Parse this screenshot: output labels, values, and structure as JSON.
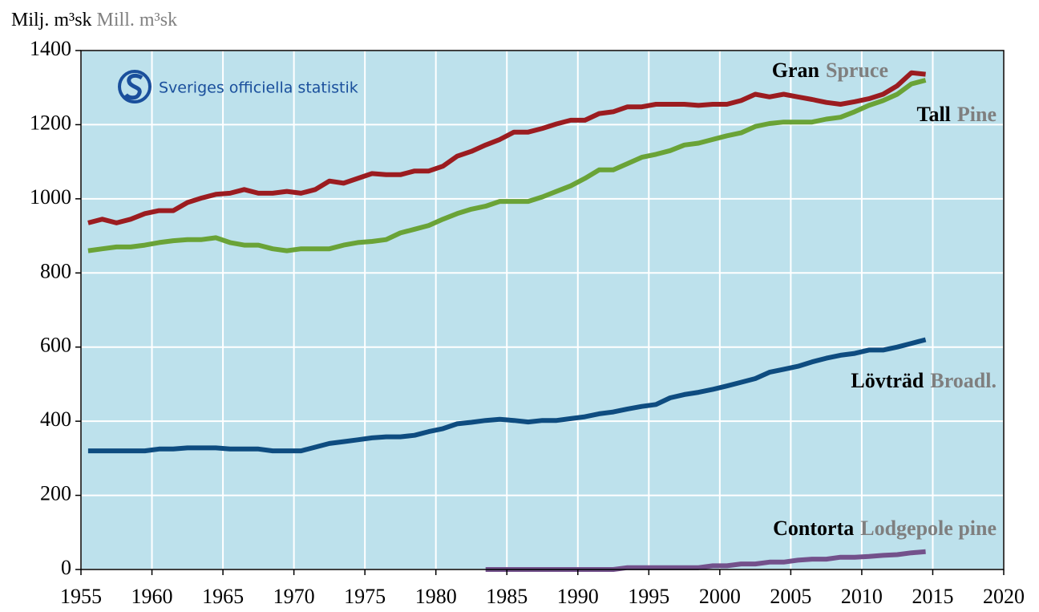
{
  "chart_data": {
    "type": "line",
    "y_label": "Milj. m³sk",
    "y_label_en": "Mill. m³sk",
    "logo": "Sveriges officiella statistik",
    "x": [
      1955.5,
      1956.5,
      1957.5,
      1958.5,
      1959.5,
      1960.5,
      1961.5,
      1962.5,
      1963.5,
      1964.5,
      1965.5,
      1966.5,
      1967.5,
      1968.5,
      1969.5,
      1970.5,
      1971.5,
      1972.5,
      1973.5,
      1974.5,
      1975.5,
      1976.5,
      1977.5,
      1978.5,
      1979.5,
      1980.5,
      1981.5,
      1982.5,
      1983.5,
      1984.5,
      1985.5,
      1986.5,
      1987.5,
      1988.5,
      1989.5,
      1990.5,
      1991.5,
      1992.5,
      1993.5,
      1994.5,
      1995.5,
      1996.5,
      1997.5,
      1998.5,
      1999.5,
      2000.5,
      2001.5,
      2002.5,
      2003.5,
      2004.5,
      2005.5,
      2006.5,
      2007.5,
      2008.5,
      2009.5,
      2010.5,
      2011.5,
      2012.5,
      2013.5,
      2014.5
    ],
    "series": [
      {
        "name": "Gran",
        "name_en": "Spruce",
        "color": "#9b1c20",
        "values": [
          935,
          945,
          935,
          945,
          960,
          968,
          968,
          990,
          1002,
          1012,
          1015,
          1025,
          1015,
          1015,
          1020,
          1015,
          1025,
          1048,
          1042,
          1055,
          1068,
          1065,
          1065,
          1075,
          1075,
          1088,
          1115,
          1128,
          1145,
          1160,
          1180,
          1180,
          1190,
          1202,
          1212,
          1212,
          1230,
          1235,
          1248,
          1248,
          1255,
          1255,
          1255,
          1252,
          1255,
          1255,
          1265,
          1282,
          1275,
          1282,
          1275,
          1268,
          1260,
          1255,
          1262,
          1270,
          1282,
          1305,
          1340,
          1336
        ]
      },
      {
        "name": "Tall",
        "name_en": "Pine",
        "color": "#6aa337",
        "values": [
          860,
          865,
          870,
          870,
          875,
          882,
          887,
          890,
          890,
          895,
          882,
          875,
          875,
          865,
          860,
          865,
          865,
          865,
          875,
          882,
          885,
          890,
          908,
          918,
          928,
          945,
          960,
          972,
          980,
          993,
          993,
          993,
          1005,
          1020,
          1035,
          1055,
          1078,
          1078,
          1095,
          1112,
          1120,
          1130,
          1145,
          1150,
          1160,
          1170,
          1178,
          1195,
          1203,
          1207,
          1207,
          1207,
          1215,
          1220,
          1235,
          1252,
          1265,
          1282,
          1310,
          1320
        ]
      },
      {
        "name": "Lövträd",
        "name_en": "Broadl.",
        "color": "#0e4c80",
        "values": [
          320,
          320,
          320,
          320,
          320,
          325,
          325,
          328,
          328,
          328,
          325,
          325,
          325,
          320,
          320,
          320,
          330,
          340,
          345,
          350,
          355,
          358,
          358,
          362,
          372,
          380,
          393,
          397,
          402,
          405,
          402,
          398,
          402,
          402,
          407,
          412,
          420,
          425,
          433,
          440,
          445,
          463,
          472,
          478,
          486,
          495,
          505,
          515,
          532,
          540,
          548,
          560,
          570,
          578,
          583,
          592,
          592,
          600,
          610,
          620
        ]
      },
      {
        "name": "Contorta",
        "name_en": "Lodgepole pine",
        "color": "#73518b",
        "values": [
          null,
          null,
          null,
          null,
          null,
          null,
          null,
          null,
          null,
          null,
          null,
          null,
          null,
          null,
          null,
          null,
          null,
          null,
          null,
          null,
          null,
          null,
          null,
          null,
          null,
          null,
          null,
          null,
          0,
          0,
          0,
          0,
          0,
          0,
          0,
          0,
          0,
          0,
          5,
          5,
          5,
          5,
          5,
          5,
          10,
          10,
          15,
          15,
          20,
          20,
          25,
          28,
          28,
          33,
          33,
          35,
          38,
          40,
          45,
          48
        ]
      }
    ],
    "xlim": [
      1955,
      2020
    ],
    "xticks": [
      1955,
      1960,
      1965,
      1970,
      1975,
      1980,
      1985,
      1990,
      1995,
      2000,
      2005,
      2010,
      2015,
      2020
    ],
    "ylim": [
      0,
      1400
    ],
    "yticks": [
      0,
      200,
      400,
      600,
      800,
      1000,
      1200,
      1400
    ],
    "grid": true
  }
}
